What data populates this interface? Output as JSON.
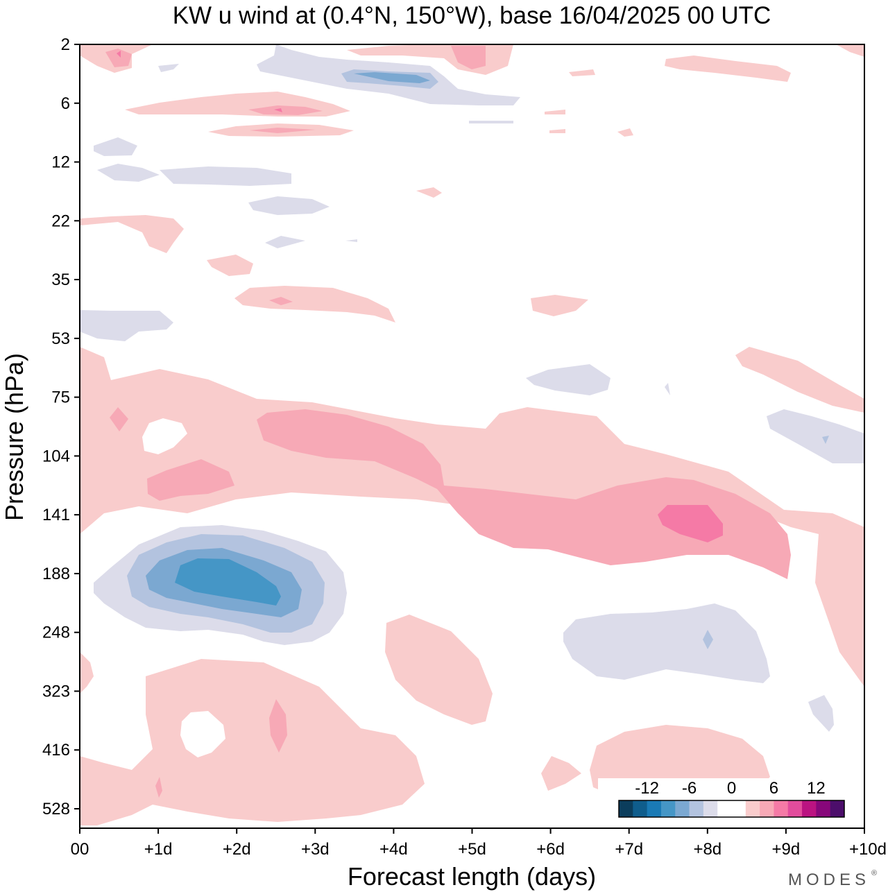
{
  "chart_data": {
    "type": "contour",
    "title": "KW u wind at (0.4°N, 150°W),  base 16/04/2025  00 UTC",
    "xlabel": "Forecast length (days)",
    "ylabel": "Pressure (hPa)",
    "x_ticks": [
      "00",
      "+1d",
      "+2d",
      "+3d",
      "+4d",
      "+5d",
      "+6d",
      "+7d",
      "+8d",
      "+9d",
      "+10d"
    ],
    "y_ticks": [
      "2",
      "6",
      "12",
      "22",
      "35",
      "53",
      "75",
      "104",
      "141",
      "188",
      "248",
      "323",
      "416",
      "528"
    ],
    "xlim_days": [
      0,
      10
    ],
    "colorbar": {
      "tick_labels": [
        "-12",
        "-6",
        "0",
        "6",
        "12"
      ],
      "colors": [
        "#0b3d5c",
        "#0f5d8c",
        "#1a7ab5",
        "#4596c6",
        "#7ba8d1",
        "#b3c3df",
        "#dcdcea",
        "#ffffff",
        "#ffffff",
        "#f9cccc",
        "#f7a9b6",
        "#f57aa6",
        "#e24c9c",
        "#bb1381",
        "#87077a",
        "#4c0e6b"
      ]
    },
    "contour_fill_colors": {
      "neg_1": "#dcdcea",
      "neg_2": "#b3c3df",
      "neg_3": "#7ba8d1",
      "neg_4": "#4596c6",
      "pos_1": "#f9cccc",
      "pos_2": "#f7a9b6",
      "pos_3": "#f57aa6"
    },
    "features": [
      {
        "sign": "negative",
        "level": 4,
        "x_days": [
          1.25,
          2.55
        ],
        "pressure_hPa": [
          160,
          220
        ]
      },
      {
        "sign": "negative",
        "level": 1,
        "x_days": [
          0.2,
          3.4
        ],
        "pressure_hPa": [
          148,
          258
        ]
      },
      {
        "sign": "positive",
        "level": 3,
        "x_days": [
          7.3,
          8.2
        ],
        "pressure_hPa": [
          132,
          162
        ]
      },
      {
        "sign": "positive",
        "level": 2,
        "x_days": [
          2.2,
          9.1
        ],
        "pressure_hPa": [
          85,
          195
        ]
      },
      {
        "sign": "positive",
        "level": 1,
        "x_days": [
          0,
          10
        ],
        "pressure_hPa": [
          55,
          530
        ]
      },
      {
        "sign": "negative",
        "level": 1,
        "x_days": [
          6.2,
          8.8
        ],
        "pressure_hPa": [
          218,
          318
        ]
      },
      {
        "sign": "negative",
        "level": 1,
        "x_days": [
          2.3,
          5.6
        ],
        "pressure_hPa": [
          2,
          6
        ]
      }
    ]
  },
  "brand": "MODES",
  "brand_mark": "®"
}
